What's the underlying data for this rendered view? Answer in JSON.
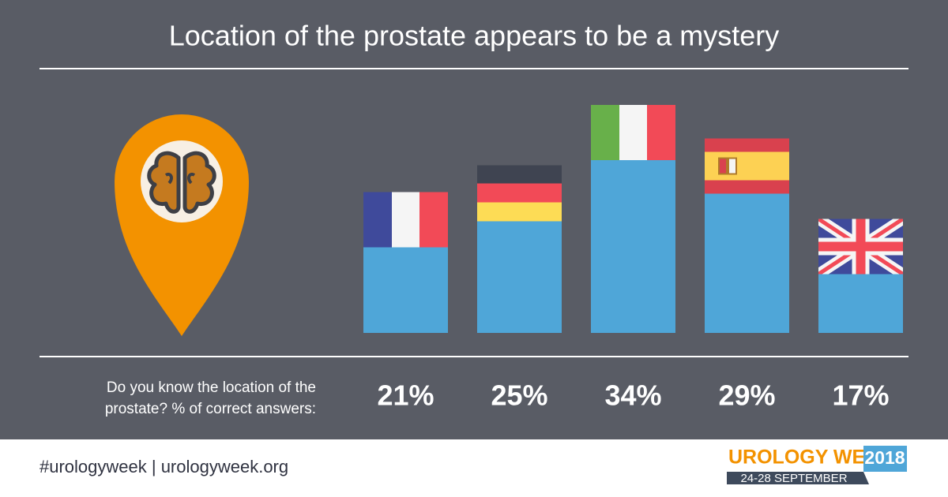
{
  "chart_data": {
    "type": "bar",
    "title": "Location of the prostate appears to be a mystery",
    "subtitle": [
      "Do you know the location of the",
      "prostate? % of correct answers:"
    ],
    "values": [
      21,
      25,
      34,
      29,
      17
    ],
    "value_labels": [
      "21%",
      "25%",
      "34%",
      "29%",
      "17%"
    ],
    "color": "#4fa6d8"
  },
  "footer": {
    "hashtag": "#urologyweek | urologyweek.org",
    "logo": {
      "name": "UROLOGY WEEK",
      "year": "2018",
      "dates": "24-28 SEPTEMBER"
    }
  }
}
